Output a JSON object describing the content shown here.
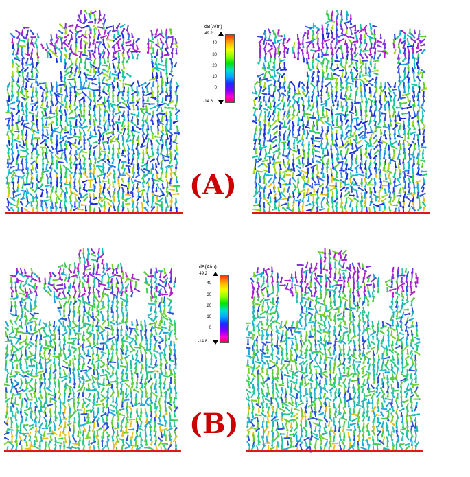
{
  "labels": {
    "a": "(A)",
    "b": "(B)"
  },
  "colorbar": {
    "unit": "dB(A/m)",
    "max": "49.2",
    "min": "-14.8",
    "ticks": [
      "40",
      "30",
      "20",
      "10",
      "0"
    ]
  },
  "colors": {
    "ground": "#e01818",
    "label": "#cc0000"
  }
}
